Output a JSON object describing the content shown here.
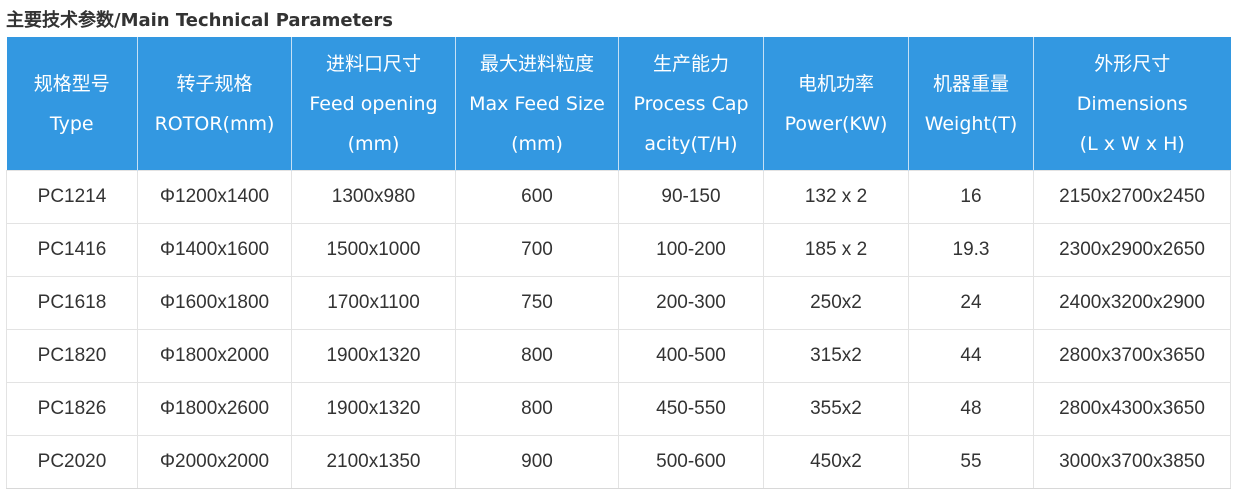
{
  "page": {
    "heading": "主要技术参数/Main Technical Parameters"
  },
  "table": {
    "headers": [
      {
        "lines": [
          "规格型号",
          "Type"
        ]
      },
      {
        "lines": [
          "转子规格",
          "ROTOR(mm)"
        ]
      },
      {
        "lines": [
          "进料口尺寸",
          "Feed opening",
          "(mm)"
        ]
      },
      {
        "lines": [
          "最大进料粒度",
          "Max Feed Size",
          "(mm)"
        ]
      },
      {
        "lines": [
          "生产能力",
          "Process Cap",
          "acity(T/H)"
        ]
      },
      {
        "lines": [
          "电机功率",
          "Power(KW)"
        ]
      },
      {
        "lines": [
          "机器重量",
          "Weight(T)"
        ]
      },
      {
        "lines": [
          "外形尺寸",
          "Dimensions",
          "(L x W x H)"
        ]
      }
    ],
    "rows": [
      [
        "PC1214",
        "Φ1200x1400",
        "1300x980",
        "600",
        "90-150",
        "132 x 2",
        "16",
        "2150x2700x2450"
      ],
      [
        "PC1416",
        "Φ1400x1600",
        "1500x1000",
        "700",
        "100-200",
        "185 x 2",
        "19.3",
        "2300x2900x2650"
      ],
      [
        "PC1618",
        "Φ1600x1800",
        "1700x1100",
        "750",
        "200-300",
        "250x2",
        "24",
        "2400x3200x2900"
      ],
      [
        "PC1820",
        "Φ1800x2000",
        "1900x1320",
        "800",
        "400-500",
        "315x2",
        "44",
        "2800x3700x3650"
      ],
      [
        "PC1826",
        "Φ1800x2600",
        "1900x1320",
        "800",
        "450-550",
        "355x2",
        "48",
        "2800x4300x3650"
      ],
      [
        "PC2020",
        "Φ2000x2000",
        "2100x1350",
        "900",
        "500-600",
        "450x2",
        "55",
        "3000x3700x3850"
      ]
    ]
  },
  "colors": {
    "header_background": "#3398e1",
    "header_text": "#ffffff",
    "body_text": "#333333",
    "grid_line": "#e3e3e3"
  }
}
